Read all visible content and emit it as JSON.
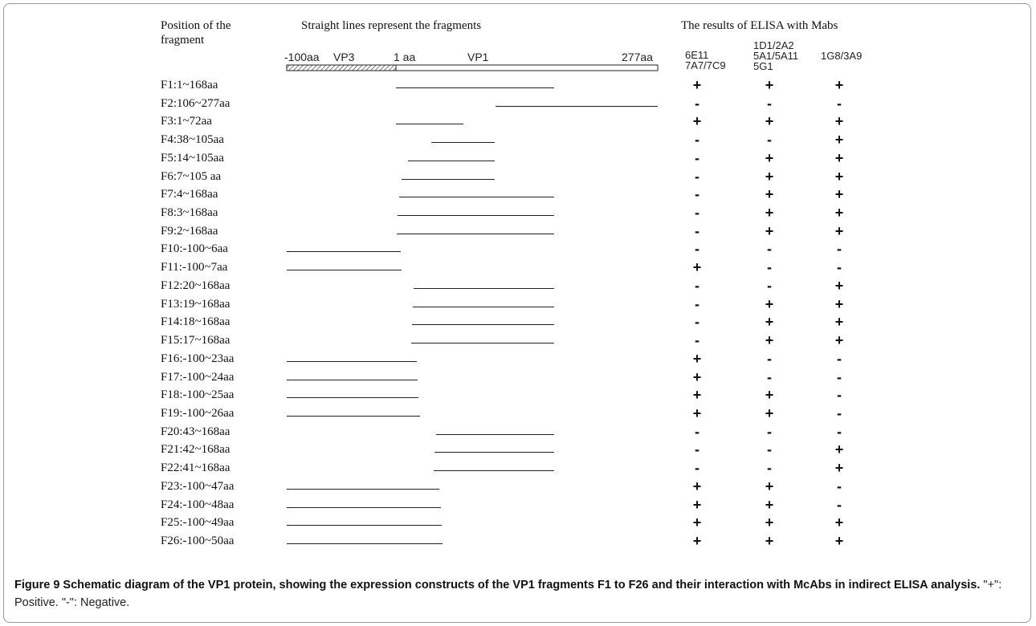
{
  "headers": {
    "position_line1": "Position of the",
    "position_line2": "fragment",
    "lines_title": "Straight lines represent the fragments",
    "elisa_title": "The results of ELISA with Mabs"
  },
  "scale": {
    "left_label": "-100aa",
    "vp3_label": "VP3",
    "one_aa_label": "1 aa",
    "vp1_label": "VP1",
    "right_label": "277aa"
  },
  "mab_groups": [
    "6E11\n7A7/7C9",
    "1D1/2A2\n5A1/5A11\n5G1",
    "1G8/3A9"
  ],
  "fragments": [
    {
      "label": "F1:1~168aa",
      "start": 1,
      "end": 168,
      "r": [
        "+",
        "+",
        "+"
      ]
    },
    {
      "label": "F2:106~277aa",
      "start": 106,
      "end": 277,
      "r": [
        "-",
        "-",
        "-"
      ]
    },
    {
      "label": "F3:1~72aa",
      "start": 1,
      "end": 72,
      "r": [
        "+",
        "+",
        "+"
      ]
    },
    {
      "label": "F4:38~105aa",
      "start": 38,
      "end": 105,
      "r": [
        "-",
        "-",
        "+"
      ]
    },
    {
      "label": "F5:14~105aa",
      "start": 14,
      "end": 105,
      "r": [
        "-",
        "+",
        "+"
      ]
    },
    {
      "label": "F6:7~105 aa",
      "start": 7,
      "end": 105,
      "r": [
        "-",
        "+",
        "+"
      ]
    },
    {
      "label": "F7:4~168aa",
      "start": 4,
      "end": 168,
      "r": [
        "-",
        "+",
        "+"
      ]
    },
    {
      "label": "F8:3~168aa",
      "start": 3,
      "end": 168,
      "r": [
        "-",
        "+",
        "+"
      ]
    },
    {
      "label": "F9:2~168aa",
      "start": 2,
      "end": 168,
      "r": [
        "-",
        "+",
        "+"
      ]
    },
    {
      "label": "F10:-100~6aa",
      "start": -100,
      "end": 6,
      "r": [
        "-",
        "-",
        "-"
      ]
    },
    {
      "label": "F11:-100~7aa",
      "start": -100,
      "end": 7,
      "r": [
        "+",
        "-",
        "-"
      ]
    },
    {
      "label": "F12:20~168aa",
      "start": 20,
      "end": 168,
      "r": [
        "-",
        "-",
        "+"
      ]
    },
    {
      "label": "F13:19~168aa",
      "start": 19,
      "end": 168,
      "r": [
        "-",
        "+",
        "+"
      ]
    },
    {
      "label": "F14:18~168aa",
      "start": 18,
      "end": 168,
      "r": [
        "-",
        "+",
        "+"
      ]
    },
    {
      "label": "F15:17~168aa",
      "start": 17,
      "end": 168,
      "r": [
        "-",
        "+",
        "+"
      ]
    },
    {
      "label": "F16:-100~23aa",
      "start": -100,
      "end": 23,
      "r": [
        "+",
        "-",
        "-"
      ]
    },
    {
      "label": "F17:-100~24aa",
      "start": -100,
      "end": 24,
      "r": [
        "+",
        "-",
        "-"
      ]
    },
    {
      "label": "F18:-100~25aa",
      "start": -100,
      "end": 25,
      "r": [
        "+",
        "+",
        "-"
      ]
    },
    {
      "label": "F19:-100~26aa",
      "start": -100,
      "end": 26,
      "r": [
        "+",
        "+",
        "-"
      ]
    },
    {
      "label": "F20:43~168aa",
      "start": 43,
      "end": 168,
      "r": [
        "-",
        "-",
        "-"
      ]
    },
    {
      "label": "F21:42~168aa",
      "start": 42,
      "end": 168,
      "r": [
        "-",
        "-",
        "+"
      ]
    },
    {
      "label": "F22:41~168aa",
      "start": 41,
      "end": 168,
      "r": [
        "-",
        "-",
        "+"
      ]
    },
    {
      "label": "F23:-100~47aa",
      "start": -100,
      "end": 47,
      "r": [
        "+",
        "+",
        "-"
      ]
    },
    {
      "label": "F24:-100~48aa",
      "start": -100,
      "end": 48,
      "r": [
        "+",
        "+",
        "-"
      ]
    },
    {
      "label": "F25:-100~49aa",
      "start": -100,
      "end": 49,
      "r": [
        "+",
        "+",
        "+"
      ]
    },
    {
      "label": "F26:-100~50aa",
      "start": -100,
      "end": 50,
      "r": [
        "+",
        "+",
        "+"
      ]
    }
  ],
  "caption": {
    "bold": "Figure 9 Schematic diagram of the VP1 protein, showing the expression constructs of the VP1 fragments F1 to F26 and their interaction with McAbs in indirect ELISA analysis.",
    "rest": " \"+\": Positive. \"-\": Negative."
  }
}
